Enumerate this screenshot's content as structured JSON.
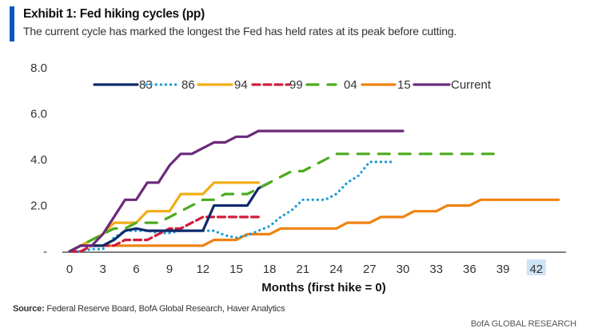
{
  "header": {
    "title": "Exhibit 1: Fed hiking cycles (pp)",
    "subtitle": "The current cycle has marked the longest the Fed has held rates at its peak before cutting."
  },
  "footer": {
    "source_label": "Source:",
    "source_text": " Federal Reserve Board, BofA Global Research, Haver Analytics",
    "brand": "BofA GLOBAL RESEARCH"
  },
  "colors": {
    "accent": "#0a57c2"
  },
  "chart_data": {
    "type": "line",
    "title": "Exhibit 1: Fed hiking cycles (pp)",
    "xlabel": "Months  (first hike = 0)",
    "ylabel": "",
    "xlim": [
      0,
      44
    ],
    "ylim": [
      0,
      8
    ],
    "xticks": [
      0,
      3,
      6,
      9,
      12,
      15,
      18,
      21,
      24,
      27,
      30,
      33,
      36,
      39,
      42
    ],
    "xtick_labels": [
      "0",
      "3",
      "6",
      "9",
      "12",
      "15",
      "18",
      "21",
      "24",
      "27",
      "30",
      "33",
      "36",
      "39",
      "42"
    ],
    "highlighted_xtick": "42",
    "yticks": [
      0,
      2,
      4,
      6,
      8
    ],
    "ytick_labels": [
      "-",
      "2.0",
      "4.0",
      "6.0",
      "8.0"
    ],
    "grid": false,
    "legend_position": "top",
    "series": [
      {
        "name": "83",
        "color": "#0d2a6b",
        "style": "solid",
        "values": [
          0,
          0.25,
          0.25,
          0.25,
          0.5,
          0.9,
          1.0,
          0.9,
          0.9,
          0.9,
          0.9,
          0.9,
          0.9,
          2.0,
          2.0,
          2.0,
          2.0,
          2.75,
          3.0
        ]
      },
      {
        "name": "86",
        "color": "#1a9ad6",
        "style": "dotted",
        "values": [
          0,
          0,
          0.1,
          0.1,
          0.6,
          0.9,
          0.9,
          0.9,
          0.8,
          0.8,
          0.9,
          0.9,
          0.9,
          0.9,
          0.7,
          0.6,
          0.7,
          0.9,
          1.1,
          1.5,
          1.8,
          2.25,
          2.25,
          2.25,
          2.5,
          3.0,
          3.3,
          3.9,
          3.9,
          3.9
        ]
      },
      {
        "name": "94",
        "color": "#f2ad14",
        "style": "solid",
        "values": [
          0,
          0.25,
          0.5,
          0.75,
          1.25,
          1.25,
          1.25,
          1.75,
          1.75,
          1.75,
          2.5,
          2.5,
          2.5,
          3.0,
          3.0,
          3.0,
          3.0,
          3.0
        ]
      },
      {
        "name": "99",
        "color": "#cf1d3c",
        "style": "dashed",
        "values": [
          0,
          0,
          0.25,
          0.25,
          0.25,
          0.5,
          0.5,
          0.5,
          0.75,
          1.0,
          1.0,
          1.25,
          1.5,
          1.5,
          1.5,
          1.5,
          1.5,
          1.5
        ]
      },
      {
        "name": "04",
        "color": "#4aab1c",
        "style": "longdash",
        "values": [
          0,
          0.25,
          0.5,
          0.75,
          1.0,
          1.0,
          1.25,
          1.25,
          1.25,
          1.5,
          1.75,
          2.0,
          2.25,
          2.25,
          2.5,
          2.5,
          2.5,
          2.75,
          3.0,
          3.25,
          3.5,
          3.5,
          3.75,
          4.0,
          4.25,
          4.25,
          4.25,
          4.25,
          4.25,
          4.25,
          4.25,
          4.25,
          4.25,
          4.25,
          4.25,
          4.25,
          4.25,
          4.25,
          4.25,
          4.25
        ]
      },
      {
        "name": "15",
        "color": "#ef8211",
        "style": "solid",
        "values": [
          0,
          0.25,
          0.25,
          0.25,
          0.25,
          0.25,
          0.25,
          0.25,
          0.25,
          0.25,
          0.25,
          0.25,
          0.25,
          0.5,
          0.5,
          0.5,
          0.75,
          0.75,
          0.75,
          1.0,
          1.0,
          1.0,
          1.0,
          1.0,
          1.0,
          1.25,
          1.25,
          1.25,
          1.5,
          1.5,
          1.5,
          1.75,
          1.75,
          1.75,
          2.0,
          2.0,
          2.0,
          2.25,
          2.25,
          2.25,
          2.25,
          2.25,
          2.25,
          2.25,
          2.25
        ]
      },
      {
        "name": "Current",
        "color": "#6b2a7a",
        "style": "solid",
        "values": [
          0,
          0.25,
          0.25,
          0.75,
          1.5,
          2.25,
          2.25,
          3.0,
          3.0,
          3.75,
          4.25,
          4.25,
          4.5,
          4.75,
          4.75,
          5.0,
          5.0,
          5.25,
          5.25,
          5.25,
          5.25,
          5.25,
          5.25,
          5.25,
          5.25,
          5.25,
          5.25,
          5.25,
          5.25,
          5.25,
          5.25
        ]
      }
    ]
  }
}
